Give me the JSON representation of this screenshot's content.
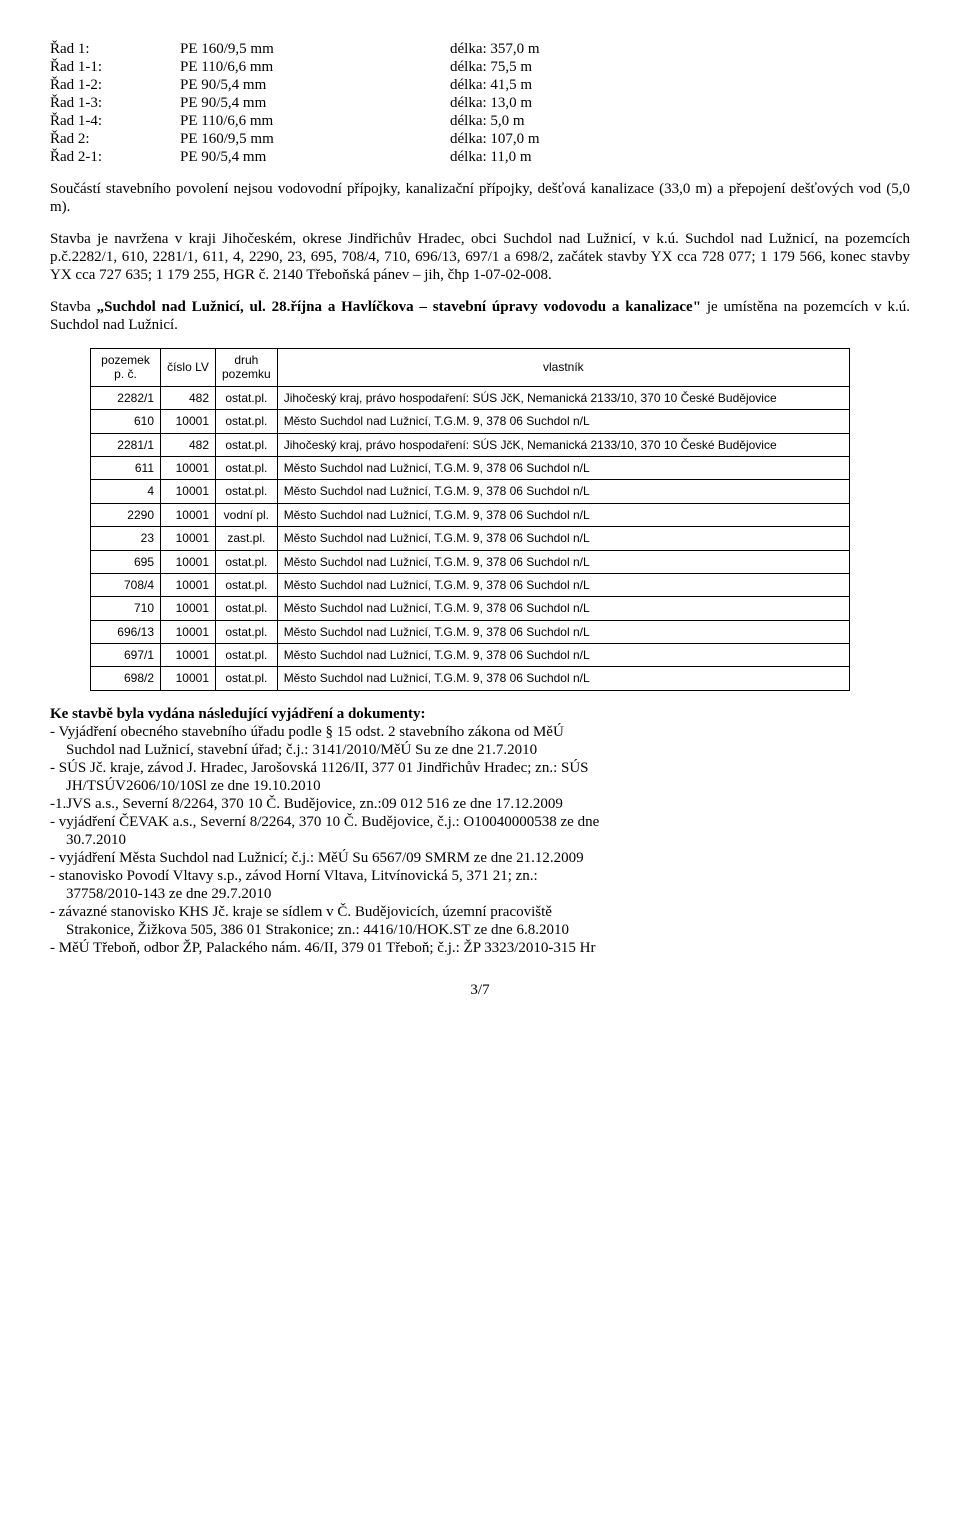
{
  "pipe_rows": [
    {
      "name": "Řad 1:",
      "spec": "PE 160/9,5 mm",
      "len": "délka: 357,0 m"
    },
    {
      "name": "Řad 1-1:",
      "spec": "PE 110/6,6 mm",
      "len": "délka:  75,5 m"
    },
    {
      "name": "Řad 1-2:",
      "spec": "PE  90/5,4 mm",
      "len": "délka:  41,5 m"
    },
    {
      "name": "Řad 1-3:",
      "spec": "PE  90/5,4 mm",
      "len": "délka:  13,0 m"
    },
    {
      "name": "Řad 1-4:",
      "spec": "PE 110/6,6 mm",
      "len": "délka:    5,0 m"
    },
    {
      "name": "Řad 2:",
      "spec": "PE 160/9,5 mm",
      "len": "délka: 107,0 m"
    },
    {
      "name": "Řad 2-1:",
      "spec": "PE  90/5,4 mm",
      "len": "délka:  11,0 m"
    }
  ],
  "para1": "Součástí stavebního povolení nejsou vodovodní přípojky, kanalizační přípojky, dešťová kanalizace (33,0 m) a přepojení dešťových vod (5,0 m).",
  "para2": "Stavba je navržena v kraji Jihočeském, okrese Jindřichův Hradec, obci Suchdol nad Lužnicí, v k.ú. Suchdol nad Lužnicí, na pozemcích p.č.2282/1, 610, 2281/1, 611, 4, 2290, 23, 695, 708/4, 710, 696/13, 697/1 a 698/2, začátek stavby YX cca 728 077; 1 179 566, konec stavby YX cca 727 635; 1 179 255, HGR č. 2140 Třeboňská pánev – jih, čhp 1-07-02-008.",
  "para3_pre": "Stavba ",
  "para3_bold": "„Suchdol nad Lužnicí, ul. 28.října a Havlíčkova – stavební úpravy vodovodu a kanalizace\"",
  "para3_post": " je umístěna na pozemcích v k.ú. Suchdol nad Lužnicí.",
  "table": {
    "headers": {
      "pc": "pozemek p. č.",
      "lv": "číslo LV",
      "druh": "druh pozemku",
      "vlastnik": "vlastník"
    },
    "rows": [
      {
        "pc": "2282/1",
        "lv": "482",
        "druh": "ostat.pl.",
        "vlastnik": "Jihočeský kraj, právo hospodaření: SÚS JčK, Nemanická 2133/10, 370 10 České Budějovice"
      },
      {
        "pc": "610",
        "lv": "10001",
        "druh": "ostat.pl.",
        "vlastnik": "Město Suchdol nad Lužnicí, T.G.M. 9, 378 06 Suchdol n/L"
      },
      {
        "pc": "2281/1",
        "lv": "482",
        "druh": "ostat.pl.",
        "vlastnik": "Jihočeský kraj, právo hospodaření: SÚS JčK, Nemanická 2133/10, 370 10 České Budějovice"
      },
      {
        "pc": "611",
        "lv": "10001",
        "druh": "ostat.pl.",
        "vlastnik": "Město Suchdol nad Lužnicí, T.G.M. 9, 378 06 Suchdol n/L"
      },
      {
        "pc": "4",
        "lv": "10001",
        "druh": "ostat.pl.",
        "vlastnik": "Město Suchdol nad Lužnicí, T.G.M. 9, 378 06 Suchdol n/L"
      },
      {
        "pc": "2290",
        "lv": "10001",
        "druh": "vodní pl.",
        "vlastnik": "Město Suchdol nad Lužnicí, T.G.M. 9, 378 06 Suchdol n/L"
      },
      {
        "pc": "23",
        "lv": "10001",
        "druh": "zast.pl.",
        "vlastnik": "Město Suchdol nad Lužnicí, T.G.M. 9, 378 06 Suchdol n/L"
      },
      {
        "pc": "695",
        "lv": "10001",
        "druh": "ostat.pl.",
        "vlastnik": "Město Suchdol nad Lužnicí, T.G.M. 9, 378 06 Suchdol n/L"
      },
      {
        "pc": "708/4",
        "lv": "10001",
        "druh": "ostat.pl.",
        "vlastnik": "Město Suchdol nad Lužnicí, T.G.M. 9, 378 06 Suchdol n/L"
      },
      {
        "pc": "710",
        "lv": "10001",
        "druh": "ostat.pl.",
        "vlastnik": "Město Suchdol nad Lužnicí, T.G.M. 9, 378 06 Suchdol n/L"
      },
      {
        "pc": "696/13",
        "lv": "10001",
        "druh": "ostat.pl.",
        "vlastnik": "Město Suchdol nad Lužnicí, T.G.M. 9, 378 06 Suchdol n/L"
      },
      {
        "pc": "697/1",
        "lv": "10001",
        "druh": "ostat.pl.",
        "vlastnik": "Město Suchdol nad Lužnicí, T.G.M. 9, 378 06 Suchdol n/L"
      },
      {
        "pc": "698/2",
        "lv": "10001",
        "druh": "ostat.pl.",
        "vlastnik": "Město Suchdol nad Lužnicí, T.G.M. 9, 378 06 Suchdol n/L"
      }
    ]
  },
  "statements_title": "Ke stavbě byla vydána následující vyjádření a dokumenty:",
  "statements": [
    {
      "t": "- Vyjádření obecného stavebního úřadu podle § 15 odst. 2 stavebního zákona od MěÚ"
    },
    {
      "t": "Suchdol nad Lužnicí, stavební úřad; č.j.: 3141/2010/MěÚ Su ze dne 21.7.2010",
      "i": true
    },
    {
      "t": "- SÚS Jč. kraje, závod J. Hradec, Jarošovská 1126/II, 377 01 Jindřichův Hradec; zn.: SÚS"
    },
    {
      "t": "JH/TSÚV2606/10/10Sl ze dne 19.10.2010",
      "i": true
    },
    {
      "t": "-1.JVS a.s., Severní 8/2264, 370 10 Č. Budějovice, zn.:09 012 516 ze dne 17.12.2009"
    },
    {
      "t": "- vyjádření ČEVAK a.s., Severní 8/2264, 370 10 Č. Budějovice, č.j.: O10040000538 ze dne"
    },
    {
      "t": "30.7.2010",
      "i": true
    },
    {
      "t": "- vyjádření Města Suchdol nad Lužnicí; č.j.: MěÚ Su 6567/09 SMRM ze dne 21.12.2009"
    },
    {
      "t": "- stanovisko Povodí Vltavy s.p., závod Horní Vltava, Litvínovická 5, 371 21; zn.:"
    },
    {
      "t": "37758/2010-143 ze dne 29.7.2010",
      "i": true
    },
    {
      "t": "- závazné stanovisko KHS Jč. kraje se sídlem v Č. Budějovicích, územní pracoviště"
    },
    {
      "t": "Strakonice, Žižkova 505, 386 01 Strakonice; zn.: 4416/10/HOK.ST ze dne 6.8.2010",
      "i": true
    },
    {
      "t": "- MěÚ Třeboň, odbor ŽP, Palackého nám. 46/II, 379 01 Třeboň; č.j.: ŽP 3323/2010-315 Hr"
    }
  ],
  "page_num": "3/7"
}
